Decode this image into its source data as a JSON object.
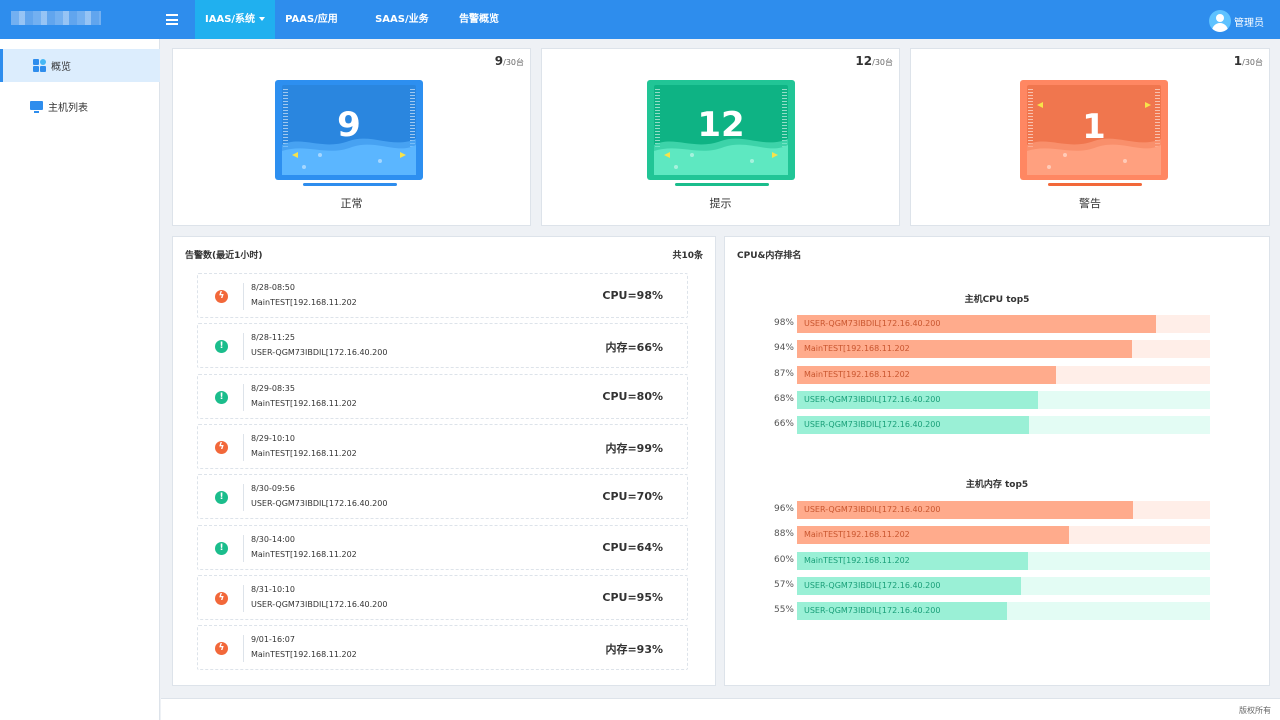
{
  "topbar": {
    "nav": [
      {
        "label": "IAAS/系统",
        "active": true
      },
      {
        "label": "PAAS/应用",
        "active": false
      },
      {
        "label": "SAAS/业务",
        "active": false
      },
      {
        "label": "告警概览",
        "active": false
      }
    ],
    "user": "管理员"
  },
  "sidebar": {
    "items": [
      {
        "label": "概览",
        "icon": "grid-icon",
        "active": true
      },
      {
        "label": "主机列表",
        "icon": "monitor-icon",
        "active": false
      }
    ]
  },
  "status_cards": [
    {
      "value": "9",
      "count": "9",
      "total": "/30台",
      "label": "正常",
      "color": "#2e8ded"
    },
    {
      "value": "12",
      "count": "12",
      "total": "/30台",
      "label": "提示",
      "color": "#1bbd8c"
    },
    {
      "value": "1",
      "count": "1",
      "total": "/30台",
      "label": "警告",
      "color": "#f2683a"
    }
  ],
  "alerts": {
    "title": "告警数(最近1小时)",
    "total": "共10条",
    "items": [
      {
        "level": "warn",
        "time": "8/28-08:50",
        "host": "MainTEST[192.168.11.202",
        "metric": "CPU=98%"
      },
      {
        "level": "hint",
        "time": "8/28-11:25",
        "host": "USER-QGM73IBDIL[172.16.40.200",
        "metric": "内存=66%"
      },
      {
        "level": "hint",
        "time": "8/29-08:35",
        "host": "MainTEST[192.168.11.202",
        "metric": "CPU=80%"
      },
      {
        "level": "warn",
        "time": "8/29-10:10",
        "host": "MainTEST[192.168.11.202",
        "metric": "内存=99%"
      },
      {
        "level": "hint",
        "time": "8/30-09:56",
        "host": "USER-QGM73IBDIL[172.16.40.200",
        "metric": "CPU=70%"
      },
      {
        "level": "hint",
        "time": "8/30-14:00",
        "host": "MainTEST[192.168.11.202",
        "metric": "CPU=64%"
      },
      {
        "level": "warn",
        "time": "8/31-10:10",
        "host": "USER-QGM73IBDIL[172.16.40.200",
        "metric": "CPU=95%"
      },
      {
        "level": "warn",
        "time": "9/01-16:07",
        "host": "MainTEST[192.168.11.202",
        "metric": "内存=93%"
      }
    ]
  },
  "ranking": {
    "title": "CPU&内存排名",
    "cpu": {
      "title": "主机CPU top5",
      "items": [
        {
          "pct": "98%",
          "value": 0.87,
          "host": "USER-QGM73IBDIL[172.16.40.200",
          "level": "high"
        },
        {
          "pct": "94%",
          "value": 0.81,
          "host": "MainTEST[192.168.11.202",
          "level": "high"
        },
        {
          "pct": "87%",
          "value": 0.628,
          "host": "MainTEST[192.168.11.202",
          "level": "high"
        },
        {
          "pct": "68%",
          "value": 0.583,
          "host": "USER-QGM73IBDIL[172.16.40.200",
          "level": "low"
        },
        {
          "pct": "66%",
          "value": 0.562,
          "host": "USER-QGM73IBDIL[172.16.40.200",
          "level": "low"
        }
      ]
    },
    "mem": {
      "title": "主机内存 top5",
      "items": [
        {
          "pct": "96%",
          "value": 0.814,
          "host": "USER-QGM73IBDIL[172.16.40.200",
          "level": "high"
        },
        {
          "pct": "88%",
          "value": 0.659,
          "host": "MainTEST[192.168.11.202",
          "level": "high"
        },
        {
          "pct": "60%",
          "value": 0.56,
          "host": "MainTEST[192.168.11.202",
          "level": "low"
        },
        {
          "pct": "57%",
          "value": 0.542,
          "host": "USER-QGM73IBDIL[172.16.40.200",
          "level": "low"
        },
        {
          "pct": "55%",
          "value": 0.508,
          "host": "USER-QGM73IBDIL[172.16.40.200",
          "level": "low"
        }
      ]
    },
    "colors": {
      "high_fill": "#ffab8c",
      "high_track": "#ffeee8",
      "high_text": "#c9562f",
      "low_fill": "#9af0d6",
      "low_track": "#e3fcf4",
      "low_text": "#199f78"
    }
  },
  "footer": "版权所有"
}
